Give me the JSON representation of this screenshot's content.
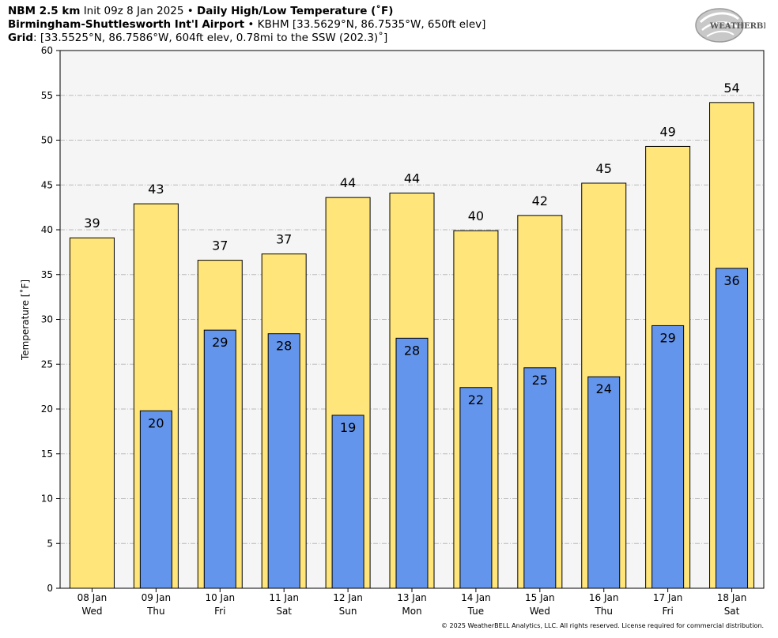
{
  "header": {
    "model": "NBM 2.5 km",
    "init": "Init 09z 8 Jan 2025",
    "sep": "•",
    "product": "Daily High/Low Temperature (˚F)",
    "station_name": "Birmingham-Shuttlesworth Int'l Airport",
    "station_info": "KBHM [33.5629°N, 86.7535°W, 650ft elev]",
    "grid_label": "Grid",
    "grid_info": ": [33.5525°N, 86.7586°W, 604ft elev, 0.78mi to the SSW (202.3)˚]"
  },
  "logo": {
    "icon": "weatherbell-logo",
    "text": "WEATHERBELL"
  },
  "copyright": "© 2025 WeatherBELL Analytics, LLC. All rights reserved. License required for commercial distribution.",
  "colors": {
    "high": "#ffe57a",
    "low": "#6495ed",
    "plot_bg": "#f5f5f5",
    "grid": "#bbbbbb"
  },
  "chart_data": {
    "type": "bar",
    "ylabel": "Temperature [˚F]",
    "ylim": [
      0,
      60
    ],
    "yticks": [
      0,
      5,
      10,
      15,
      20,
      25,
      30,
      35,
      40,
      45,
      50,
      55,
      60
    ],
    "grid": true,
    "categories": [
      [
        "08 Jan",
        "Wed"
      ],
      [
        "09 Jan",
        "Thu"
      ],
      [
        "10 Jan",
        "Fri"
      ],
      [
        "11 Jan",
        "Sat"
      ],
      [
        "12 Jan",
        "Sun"
      ],
      [
        "13 Jan",
        "Mon"
      ],
      [
        "14 Jan",
        "Tue"
      ],
      [
        "15 Jan",
        "Wed"
      ],
      [
        "16 Jan",
        "Thu"
      ],
      [
        "17 Jan",
        "Fri"
      ],
      [
        "18 Jan",
        "Sat"
      ]
    ],
    "series": [
      {
        "values": [
          39.1,
          42.9,
          36.6,
          37.3,
          43.6,
          44.1,
          39.9,
          41.6,
          45.2,
          49.3,
          54.2
        ],
        "labels": [
          "39",
          "43",
          "37",
          "37",
          "44",
          "44",
          "40",
          "42",
          "45",
          "49",
          "54"
        ]
      },
      {
        "values": [
          null,
          19.8,
          28.8,
          28.4,
          19.3,
          27.9,
          22.4,
          24.6,
          23.6,
          29.3,
          35.7
        ],
        "labels": [
          null,
          "20",
          "29",
          "28",
          "19",
          "28",
          "22",
          "25",
          "24",
          "29",
          "36"
        ]
      }
    ]
  }
}
